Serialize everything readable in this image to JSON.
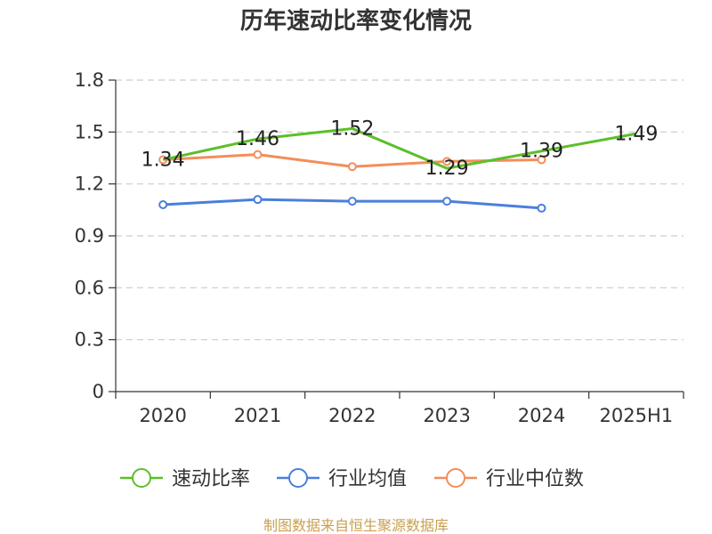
{
  "chart_data": {
    "type": "line",
    "title": "历年速动比率变化情况",
    "categories": [
      "2020",
      "2021",
      "2022",
      "2023",
      "2024",
      "2025H1"
    ],
    "ylim": [
      0,
      1.8
    ],
    "yticks": [
      "0",
      "0.3",
      "0.6",
      "0.9",
      "1.2",
      "1.5",
      "1.8"
    ],
    "ytick_values": [
      0,
      0.3,
      0.6,
      0.9,
      1.2,
      1.5,
      1.8
    ],
    "grid": true,
    "legend_position": "bottom",
    "series": [
      {
        "name": "速动比率",
        "color": "#5cbf2a",
        "values": [
          1.34,
          1.46,
          1.52,
          1.29,
          1.39,
          1.49
        ],
        "labels": [
          "1.34",
          "1.46",
          "1.52",
          "1.29",
          "1.39",
          "1.49"
        ],
        "show_markers": false
      },
      {
        "name": "行业均值",
        "color": "#4a7fdc",
        "values": [
          1.08,
          1.11,
          1.1,
          1.1,
          1.06,
          null
        ],
        "show_markers": true
      },
      {
        "name": "行业中位数",
        "color": "#f28e5b",
        "values": [
          1.34,
          1.37,
          1.3,
          1.33,
          1.34,
          null
        ],
        "show_markers": true
      }
    ]
  },
  "source": {
    "text": "制图数据来自恒生聚源数据库",
    "color": "#c8a050"
  }
}
